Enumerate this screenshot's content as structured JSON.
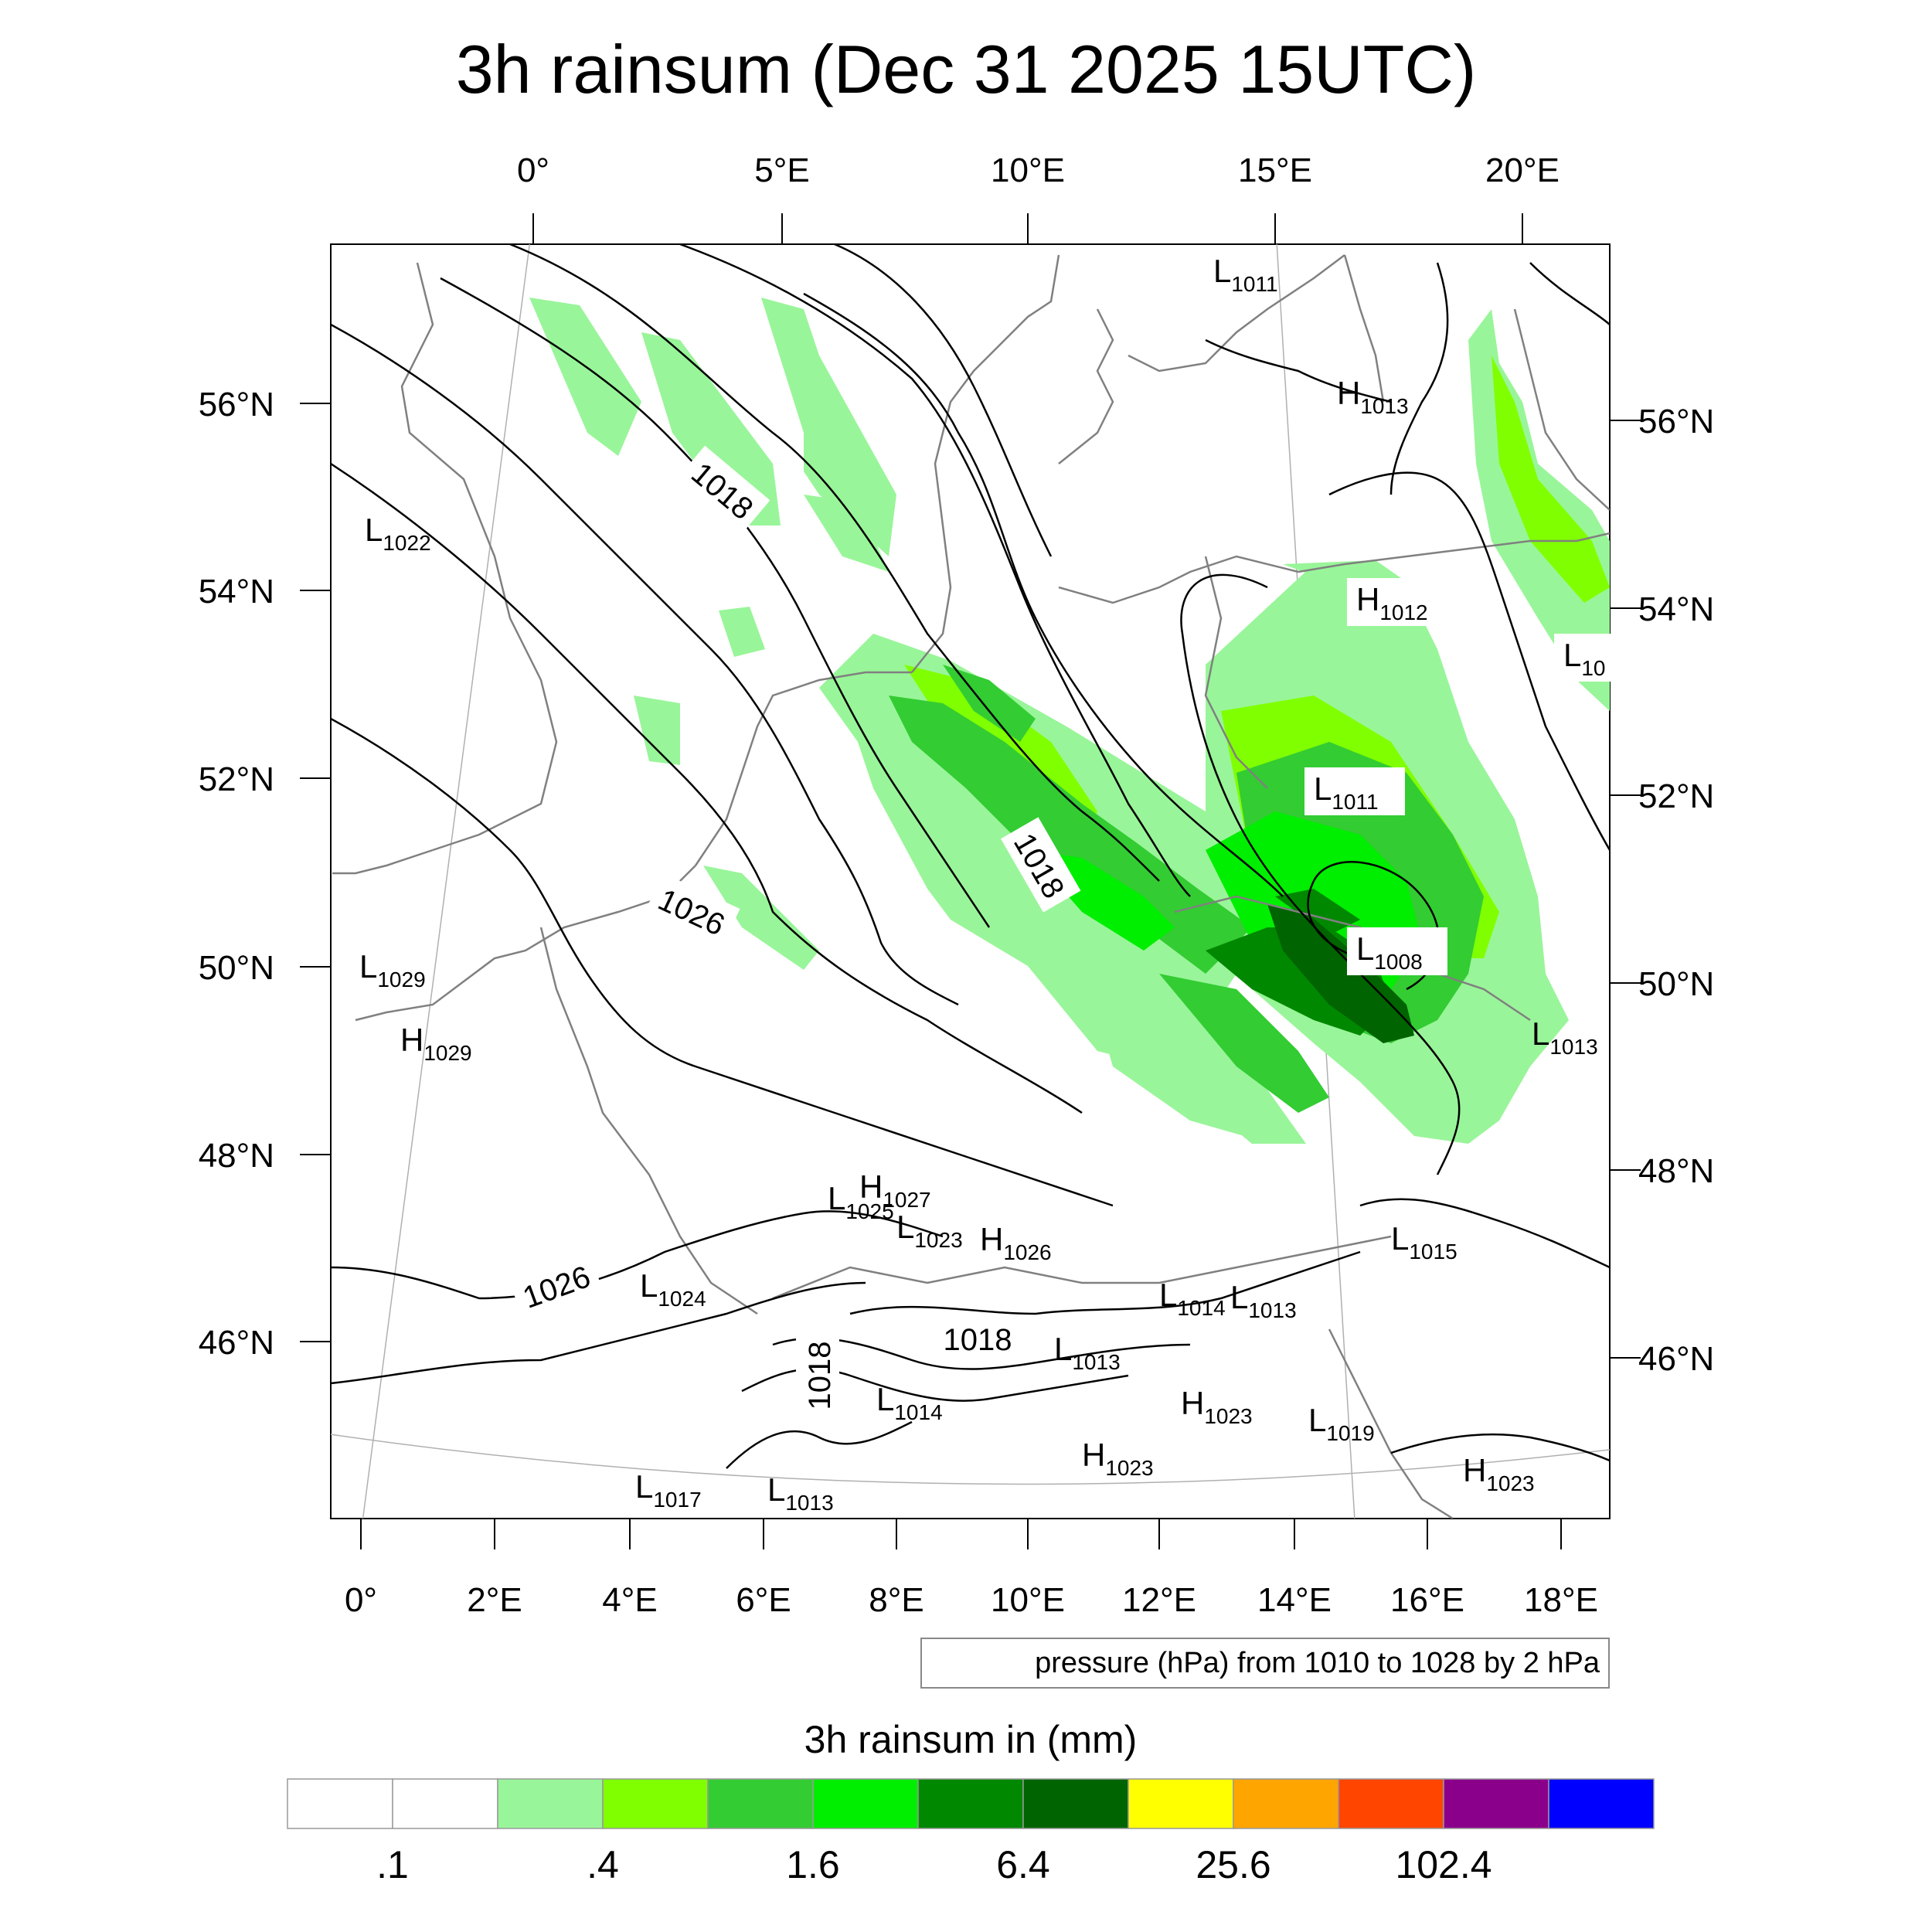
{
  "title": "3h rainsum (Dec 31 2025 15UTC)",
  "axes": {
    "top_lon_labels": [
      "0°",
      "5°E",
      "10°E",
      "15°E",
      "20°E"
    ],
    "bottom_lon_labels": [
      "0°",
      "2°E",
      "4°E",
      "6°E",
      "8°E",
      "10°E",
      "12°E",
      "14°E",
      "16°E",
      "18°E"
    ],
    "left_lat_labels": [
      "56°N",
      "54°N",
      "52°N",
      "50°N",
      "48°N",
      "46°N"
    ],
    "right_lat_labels": [
      "56°N",
      "54°N",
      "52°N",
      "50°N",
      "48°N",
      "46°N"
    ]
  },
  "contour_info": "pressure (hPa) from 1010 to 1028 by 2 hPa",
  "contour_labels": [
    "1018",
    "1018",
    "1026",
    "1026",
    "1018",
    "1018"
  ],
  "pressure_centers": [
    {
      "type": "L",
      "value": "1011"
    },
    {
      "type": "H",
      "value": "1013"
    },
    {
      "type": "L",
      "value": "1022"
    },
    {
      "type": "H",
      "value": "1012"
    },
    {
      "type": "L",
      "value": "10"
    },
    {
      "type": "L",
      "value": "1011"
    },
    {
      "type": "L",
      "value": "1008"
    },
    {
      "type": "L",
      "value": "1029"
    },
    {
      "type": "H",
      "value": "1029"
    },
    {
      "type": "L",
      "value": "1013"
    },
    {
      "type": "L",
      "value": "1025"
    },
    {
      "type": "H",
      "value": "1027"
    },
    {
      "type": "L",
      "value": "1023"
    },
    {
      "type": "H",
      "value": "1026"
    },
    {
      "type": "L",
      "value": "1015"
    },
    {
      "type": "L",
      "value": "1024"
    },
    {
      "type": "L",
      "value": "1014"
    },
    {
      "type": "L",
      "value": "1013"
    },
    {
      "type": "L",
      "value": "1013"
    },
    {
      "type": "L",
      "value": "1014"
    },
    {
      "type": "H",
      "value": "1023"
    },
    {
      "type": "L",
      "value": "1019"
    },
    {
      "type": "H",
      "value": "1023"
    },
    {
      "type": "H",
      "value": "1023"
    },
    {
      "type": "L",
      "value": "1017"
    },
    {
      "type": "L",
      "value": "1013"
    }
  ],
  "colorbar": {
    "title": "3h rainsum in (mm)",
    "colors": [
      "#ffffff",
      "#ffffff",
      "#99f599",
      "#80ff00",
      "#33cc33",
      "#00ee00",
      "#008800",
      "#006400",
      "#ffff00",
      "#ffa500",
      "#ff4500",
      "#8b008b",
      "#0000ff"
    ],
    "tick_labels": [
      ".1",
      ".4",
      "1.6",
      "6.4",
      "25.6",
      "102.4"
    ]
  },
  "colors": {
    "contour": "#000000",
    "coastline": "#808080",
    "graticule": "#aaaaaa"
  }
}
